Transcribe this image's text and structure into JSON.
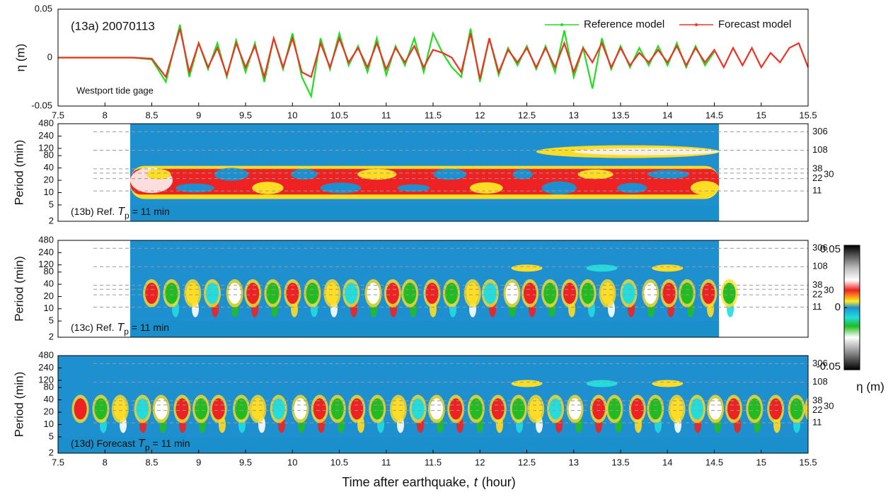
{
  "chart_data": [
    {
      "type": "line",
      "ylabel": "η (m)",
      "panel_label": "(13a) 20070113",
      "annotation": "Westport tide gage",
      "xlim": [
        7.5,
        15.5
      ],
      "xticks": [
        7.5,
        8,
        8.5,
        9,
        9.5,
        10,
        10.5,
        11,
        11.5,
        12,
        12.5,
        13,
        13.5,
        14,
        14.5,
        15,
        15.5
      ],
      "ylim": [
        -0.05,
        0.05
      ],
      "yticks": [
        -0.05,
        0,
        0.05
      ],
      "legend": "upper right",
      "x": [
        7.5,
        8.3,
        8.5,
        8.65,
        8.8,
        8.9,
        9.0,
        9.1,
        9.2,
        9.3,
        9.4,
        9.5,
        9.6,
        9.7,
        9.8,
        9.9,
        10.0,
        10.1,
        10.2,
        10.3,
        10.4,
        10.5,
        10.6,
        10.7,
        10.8,
        10.9,
        11.0,
        11.1,
        11.2,
        11.3,
        11.4,
        11.5,
        11.6,
        11.7,
        11.8,
        11.9,
        12.0,
        12.1,
        12.2,
        12.3,
        12.4,
        12.5,
        12.6,
        12.7,
        12.8,
        12.9,
        13.0,
        13.1,
        13.2,
        13.3,
        13.4,
        13.5,
        13.6,
        13.7,
        13.8,
        13.9,
        14.0,
        14.1,
        14.2,
        14.3,
        14.4,
        14.5,
        14.6,
        14.7,
        14.8,
        14.9,
        15.0,
        15.1,
        15.2,
        15.3,
        15.4,
        15.5
      ],
      "series": [
        {
          "name": "Reference model",
          "color": "#22dd22",
          "values": [
            0,
            0,
            -0.002,
            -0.025,
            0.034,
            -0.02,
            0.015,
            -0.012,
            0.015,
            -0.02,
            0.018,
            -0.015,
            0.015,
            -0.025,
            0.02,
            -0.012,
            0.025,
            -0.02,
            -0.04,
            0.02,
            -0.012,
            0.025,
            -0.008,
            0.012,
            -0.015,
            0.02,
            -0.018,
            0.012,
            -0.008,
            0.02,
            -0.015,
            0.025,
            0.005,
            -0.01,
            -0.02,
            0.03,
            -0.025,
            0.02,
            -0.018,
            0.01,
            -0.008,
            0.012,
            -0.012,
            0.012,
            -0.015,
            0.028,
            -0.02,
            0.01,
            -0.032,
            0.02,
            -0.012,
            0.012,
            -0.01,
            0.01,
            -0.008,
            0.012,
            -0.008,
            0.015,
            -0.01,
            0.012,
            -0.008,
            0.006,
            null,
            null,
            null,
            null,
            null,
            null,
            null,
            null,
            null,
            null
          ]
        },
        {
          "name": "Forecast model",
          "color": "#ee3322",
          "values": [
            0,
            0,
            -0.001,
            -0.02,
            0.03,
            -0.015,
            0.015,
            -0.01,
            0.01,
            -0.018,
            0.015,
            -0.01,
            0.012,
            -0.02,
            0.02,
            -0.01,
            0.02,
            -0.015,
            -0.02,
            0.015,
            -0.01,
            0.02,
            -0.005,
            0.01,
            -0.01,
            0.015,
            -0.012,
            0.01,
            -0.005,
            0.012,
            -0.01,
            0.008,
            0.005,
            0,
            -0.015,
            0.025,
            -0.022,
            0.02,
            -0.015,
            0.008,
            -0.005,
            0.01,
            -0.01,
            0.01,
            -0.01,
            0.015,
            -0.015,
            0.01,
            -0.005,
            0.015,
            -0.01,
            0.01,
            -0.008,
            0.005,
            -0.005,
            0.008,
            -0.005,
            0.012,
            -0.008,
            0.01,
            -0.005,
            0.008,
            -0.01,
            0.01,
            -0.008,
            0.01,
            -0.01,
            0.005,
            -0.005,
            0.01,
            0.015,
            -0.01
          ]
        }
      ]
    },
    {
      "type": "spectrogram",
      "panel_label": "(13b) Ref.",
      "symbol": "T",
      "symbol_sub": "p",
      "label_tail": "=  11 min",
      "ylabel": "Period (min)",
      "xlim": [
        7.5,
        15.5
      ],
      "ylim": [
        2,
        480
      ],
      "yticks": [
        2,
        5,
        10,
        20,
        40,
        80,
        120,
        240,
        480
      ],
      "log_scale": true,
      "period_lines": [
        11,
        22,
        30,
        38,
        108,
        306
      ],
      "data_extent": [
        8.27,
        14.55
      ],
      "style": "band"
    },
    {
      "type": "spectrogram",
      "panel_label": "(13c) Ref.",
      "symbol": "T",
      "symbol_sub": "p",
      "label_tail": "=  11 min",
      "ylabel": "Period (min)",
      "xlim": [
        7.5,
        15.5
      ],
      "ylim": [
        2,
        480
      ],
      "yticks": [
        2,
        5,
        10,
        20,
        40,
        80,
        120,
        240,
        480
      ],
      "log_scale": true,
      "period_lines": [
        11,
        22,
        30,
        38,
        108,
        306
      ],
      "data_extent": [
        8.27,
        14.55
      ],
      "style": "blobs",
      "colorbar": {
        "label": "η (m)",
        "clim": [
          -0.05,
          0.05
        ],
        "ticks": [
          0.05,
          0,
          -0.05
        ]
      }
    },
    {
      "type": "spectrogram",
      "panel_label": "(13d) Forecast",
      "symbol": "T",
      "symbol_sub": "p",
      "label_tail": "=  11 min",
      "ylabel": "Period (min)",
      "xlim": [
        7.5,
        15.5
      ],
      "ylim": [
        2,
        480
      ],
      "yticks": [
        2,
        5,
        10,
        20,
        40,
        80,
        120,
        240,
        480
      ],
      "log_scale": true,
      "period_lines": [
        11,
        22,
        30,
        38,
        108,
        306
      ],
      "data_extent": [
        7.5,
        15.5
      ],
      "style": "blobs",
      "xticks": [
        7.5,
        8,
        8.5,
        9,
        9.5,
        10,
        10.5,
        11,
        11.5,
        12,
        12.5,
        13,
        13.5,
        14,
        14.5,
        15,
        15.5
      ],
      "xlabel": "Time after earthquake,",
      "xlabel_var": "t",
      "xlabel_unit": "(hour)"
    }
  ]
}
